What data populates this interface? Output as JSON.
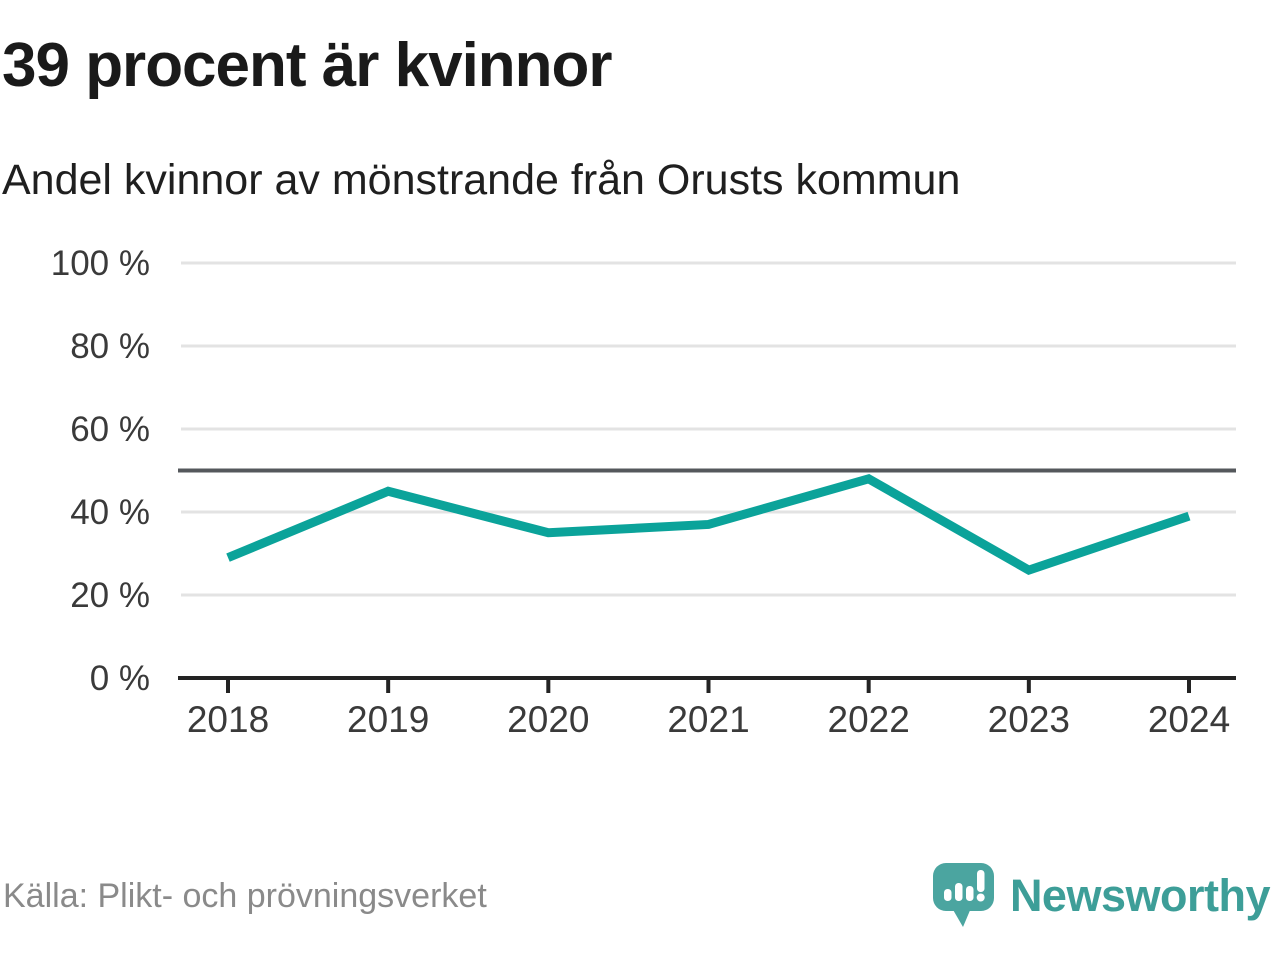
{
  "header": {
    "title": "39 procent är kvinnor",
    "subtitle": "Andel kvinnor av mönstrande från Orusts kommun"
  },
  "footer": {
    "source": "Källa: Plikt- och prövningsverket",
    "brand_name": "Newsworthy"
  },
  "colors": {
    "line": "#0ba39a",
    "reference_line": "#55585c",
    "grid": "#e3e3e3",
    "axis": "#232323",
    "tick_text": "#3a3a3a",
    "source_text": "#8a8a8a",
    "brand_teal": "#3d9e98",
    "logo_bubble": "#4ba5a0",
    "logo_marks": "#ffffff"
  },
  "chart_data": {
    "type": "line",
    "title": "39 procent är kvinnor",
    "subtitle": "Andel kvinnor av mönstrande från Orusts kommun",
    "x": [
      2018,
      2019,
      2020,
      2021,
      2022,
      2023,
      2024
    ],
    "series": [
      {
        "name": "Andel kvinnor av mönstrande",
        "values": [
          29,
          45,
          35,
          37,
          48,
          26,
          39
        ]
      }
    ],
    "unit": "%",
    "ylim": [
      0,
      100
    ],
    "yticks": [
      0,
      20,
      40,
      60,
      80,
      100
    ],
    "ytick_format": "{v} %",
    "reference_line": 50,
    "grid": true,
    "legend": false,
    "latest_value_highlight": 39
  }
}
